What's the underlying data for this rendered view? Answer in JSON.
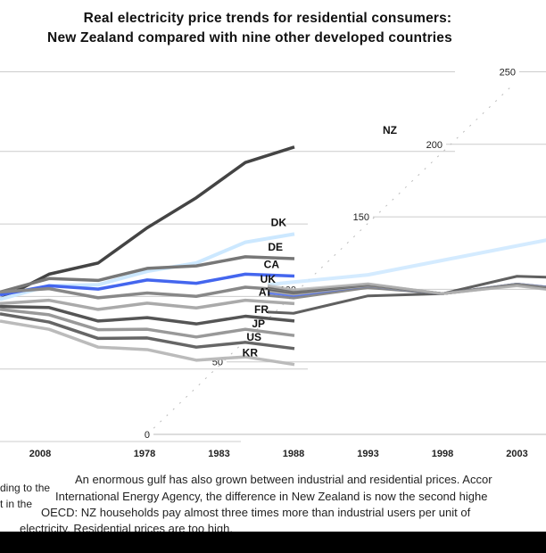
{
  "title_line1": "Real electricity price trends for residential consumers:",
  "title_line2": "New Zealand compared with nine other developed countries",
  "left_panel_xlabel": "2008",
  "paragraph": [
    "An enormous gulf has also grown between industrial and residential prices. Accor",
    "International Energy Agency, the difference in New Zealand is now the second highe",
    "OECD: NZ households pay almost three times more than industrial users per unit of",
    "electricity. Residential prices are too high."
  ],
  "left_fragments": [
    "ding to the",
    "t in the"
  ],
  "chart_data": {
    "type": "line",
    "title": "Real electricity price trends for residential consumers: New Zealand compared with nine other developed countries",
    "x": [
      1978,
      1983,
      1988,
      1993,
      1998,
      2003,
      2008
    ],
    "xticks": [
      "1978",
      "1983",
      "1988",
      "1993",
      "1998",
      "2003"
    ],
    "yticks": [
      "0",
      "50",
      "100",
      "150",
      "200",
      "250"
    ],
    "ylim": [
      0,
      250
    ],
    "grid": true,
    "series": [
      {
        "name": "NZ",
        "color": "#444444",
        "values": [
          95,
          108,
          120,
          140,
          165,
          185,
          200
        ]
      },
      {
        "name": "DK",
        "color": "#cce8ff",
        "values": [
          95,
          100,
          105,
          110,
          120,
          130,
          140
        ]
      },
      {
        "name": "DE",
        "color": "#777777",
        "values": [
          100,
          105,
          108,
          112,
          118,
          120,
          123
        ]
      },
      {
        "name": "CA",
        "color": "#4466ee",
        "values": [
          98,
          100,
          102,
          104,
          106,
          108,
          111
        ]
      },
      {
        "name": "UK",
        "color": "#888888",
        "values": [
          100,
          98,
          96,
          95,
          97,
          99,
          101
        ]
      },
      {
        "name": "AT",
        "color": "#aaaaaa",
        "values": [
          92,
          90,
          88,
          88,
          89,
          90,
          92
        ]
      },
      {
        "name": "FR",
        "color": "#555555",
        "values": [
          90,
          85,
          80,
          78,
          78,
          79,
          80
        ]
      },
      {
        "name": "JP",
        "color": "#999999",
        "values": [
          88,
          80,
          74,
          70,
          69,
          70,
          70
        ]
      },
      {
        "name": "US",
        "color": "#666666",
        "values": [
          85,
          75,
          68,
          64,
          62,
          61,
          61
        ]
      },
      {
        "name": "KR",
        "color": "#bbbbbb",
        "values": [
          80,
          70,
          62,
          56,
          53,
          51,
          50
        ]
      }
    ]
  }
}
